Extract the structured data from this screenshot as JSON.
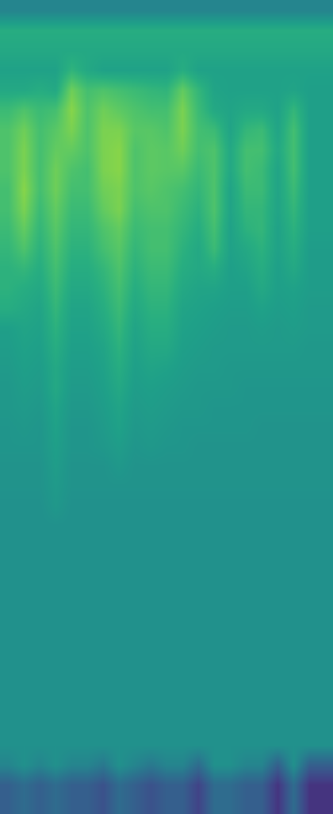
{
  "chart_data": {
    "type": "heatmap",
    "tick_labels": false,
    "zlim": [
      0,
      1
    ],
    "cells": [
      [
        0.45,
        0.45,
        0.45,
        0.45,
        0.45,
        0.45,
        0.45,
        0.45,
        0.45,
        0.45,
        0.45,
        0.45,
        0.45,
        0.45,
        0.45,
        0.45,
        0.45,
        0.45,
        0.45,
        0.45,
        0.45
      ],
      [
        0.62,
        0.62,
        0.62,
        0.62,
        0.62,
        0.62,
        0.62,
        0.62,
        0.62,
        0.62,
        0.62,
        0.62,
        0.62,
        0.62,
        0.62,
        0.62,
        0.62,
        0.62,
        0.62,
        0.62,
        0.62
      ],
      [
        0.6,
        0.6,
        0.6,
        0.6,
        0.6,
        0.6,
        0.6,
        0.6,
        0.6,
        0.6,
        0.6,
        0.6,
        0.6,
        0.6,
        0.6,
        0.6,
        0.6,
        0.6,
        0.6,
        0.6,
        0.6
      ],
      [
        0.57,
        0.57,
        0.57,
        0.57,
        0.65,
        0.6,
        0.57,
        0.57,
        0.57,
        0.57,
        0.57,
        0.62,
        0.57,
        0.57,
        0.57,
        0.57,
        0.57,
        0.57,
        0.57,
        0.57,
        0.57
      ],
      [
        0.6,
        0.6,
        0.62,
        0.6,
        0.78,
        0.7,
        0.72,
        0.7,
        0.68,
        0.66,
        0.65,
        0.76,
        0.66,
        0.58,
        0.57,
        0.57,
        0.57,
        0.57,
        0.58,
        0.56,
        0.56
      ],
      [
        0.68,
        0.72,
        0.68,
        0.7,
        0.82,
        0.72,
        0.78,
        0.75,
        0.72,
        0.7,
        0.7,
        0.8,
        0.68,
        0.6,
        0.58,
        0.6,
        0.6,
        0.57,
        0.66,
        0.56,
        0.56
      ],
      [
        0.72,
        0.78,
        0.7,
        0.74,
        0.8,
        0.72,
        0.8,
        0.8,
        0.74,
        0.74,
        0.72,
        0.8,
        0.7,
        0.68,
        0.58,
        0.66,
        0.68,
        0.58,
        0.7,
        0.56,
        0.56
      ],
      [
        0.72,
        0.8,
        0.7,
        0.76,
        0.76,
        0.72,
        0.8,
        0.82,
        0.72,
        0.75,
        0.74,
        0.78,
        0.7,
        0.72,
        0.6,
        0.7,
        0.7,
        0.6,
        0.7,
        0.56,
        0.56
      ],
      [
        0.72,
        0.8,
        0.7,
        0.78,
        0.72,
        0.7,
        0.8,
        0.82,
        0.72,
        0.75,
        0.74,
        0.74,
        0.68,
        0.72,
        0.6,
        0.7,
        0.68,
        0.58,
        0.7,
        0.56,
        0.56
      ],
      [
        0.7,
        0.82,
        0.7,
        0.78,
        0.7,
        0.7,
        0.78,
        0.8,
        0.72,
        0.74,
        0.72,
        0.7,
        0.66,
        0.72,
        0.58,
        0.68,
        0.68,
        0.58,
        0.68,
        0.56,
        0.56
      ],
      [
        0.7,
        0.8,
        0.68,
        0.76,
        0.68,
        0.68,
        0.76,
        0.8,
        0.7,
        0.72,
        0.72,
        0.68,
        0.64,
        0.72,
        0.58,
        0.66,
        0.66,
        0.58,
        0.66,
        0.56,
        0.56
      ],
      [
        0.68,
        0.76,
        0.66,
        0.74,
        0.66,
        0.66,
        0.72,
        0.76,
        0.68,
        0.7,
        0.7,
        0.66,
        0.62,
        0.7,
        0.57,
        0.64,
        0.66,
        0.57,
        0.64,
        0.56,
        0.56
      ],
      [
        0.66,
        0.72,
        0.64,
        0.72,
        0.64,
        0.64,
        0.7,
        0.74,
        0.66,
        0.7,
        0.7,
        0.64,
        0.6,
        0.68,
        0.57,
        0.6,
        0.64,
        0.57,
        0.62,
        0.55,
        0.55
      ],
      [
        0.64,
        0.66,
        0.62,
        0.7,
        0.62,
        0.62,
        0.66,
        0.72,
        0.64,
        0.68,
        0.68,
        0.62,
        0.6,
        0.62,
        0.56,
        0.58,
        0.62,
        0.56,
        0.6,
        0.55,
        0.55
      ],
      [
        0.64,
        0.62,
        0.6,
        0.68,
        0.6,
        0.6,
        0.64,
        0.7,
        0.62,
        0.66,
        0.66,
        0.6,
        0.58,
        0.58,
        0.56,
        0.56,
        0.6,
        0.56,
        0.57,
        0.55,
        0.55
      ],
      [
        0.62,
        0.6,
        0.58,
        0.66,
        0.58,
        0.58,
        0.62,
        0.68,
        0.6,
        0.64,
        0.64,
        0.58,
        0.57,
        0.56,
        0.55,
        0.55,
        0.57,
        0.55,
        0.56,
        0.54,
        0.54
      ],
      [
        0.56,
        0.58,
        0.57,
        0.64,
        0.57,
        0.57,
        0.6,
        0.66,
        0.58,
        0.62,
        0.62,
        0.57,
        0.56,
        0.55,
        0.54,
        0.54,
        0.55,
        0.54,
        0.55,
        0.54,
        0.54
      ],
      [
        0.55,
        0.57,
        0.56,
        0.62,
        0.56,
        0.56,
        0.58,
        0.64,
        0.57,
        0.6,
        0.6,
        0.56,
        0.55,
        0.54,
        0.54,
        0.54,
        0.54,
        0.54,
        0.54,
        0.53,
        0.53
      ],
      [
        0.54,
        0.56,
        0.55,
        0.6,
        0.55,
        0.55,
        0.57,
        0.62,
        0.56,
        0.58,
        0.57,
        0.55,
        0.54,
        0.54,
        0.53,
        0.53,
        0.53,
        0.53,
        0.53,
        0.53,
        0.53
      ],
      [
        0.53,
        0.55,
        0.54,
        0.6,
        0.54,
        0.54,
        0.56,
        0.6,
        0.55,
        0.56,
        0.55,
        0.54,
        0.53,
        0.53,
        0.53,
        0.52,
        0.52,
        0.52,
        0.52,
        0.52,
        0.52
      ],
      [
        0.53,
        0.54,
        0.53,
        0.58,
        0.53,
        0.53,
        0.55,
        0.58,
        0.54,
        0.55,
        0.54,
        0.53,
        0.53,
        0.52,
        0.52,
        0.52,
        0.52,
        0.52,
        0.52,
        0.52,
        0.52
      ],
      [
        0.52,
        0.53,
        0.52,
        0.57,
        0.52,
        0.52,
        0.54,
        0.57,
        0.53,
        0.54,
        0.53,
        0.52,
        0.52,
        0.52,
        0.52,
        0.52,
        0.51,
        0.51,
        0.51,
        0.51,
        0.51
      ],
      [
        0.52,
        0.52,
        0.52,
        0.56,
        0.52,
        0.52,
        0.53,
        0.55,
        0.52,
        0.53,
        0.52,
        0.52,
        0.51,
        0.51,
        0.51,
        0.51,
        0.51,
        0.51,
        0.51,
        0.51,
        0.51
      ],
      [
        0.51,
        0.51,
        0.51,
        0.55,
        0.51,
        0.51,
        0.51,
        0.53,
        0.51,
        0.51,
        0.51,
        0.51,
        0.51,
        0.51,
        0.51,
        0.51,
        0.51,
        0.51,
        0.51,
        0.51,
        0.51
      ],
      [
        0.51,
        0.51,
        0.51,
        0.54,
        0.51,
        0.51,
        0.51,
        0.51,
        0.51,
        0.51,
        0.51,
        0.51,
        0.51,
        0.51,
        0.51,
        0.51,
        0.51,
        0.51,
        0.51,
        0.51,
        0.51
      ],
      [
        0.5,
        0.5,
        0.5,
        0.53,
        0.5,
        0.5,
        0.5,
        0.5,
        0.5,
        0.5,
        0.5,
        0.5,
        0.5,
        0.5,
        0.5,
        0.5,
        0.5,
        0.5,
        0.5,
        0.5,
        0.5
      ],
      [
        0.5,
        0.5,
        0.5,
        0.5,
        0.5,
        0.5,
        0.5,
        0.5,
        0.5,
        0.5,
        0.5,
        0.5,
        0.5,
        0.5,
        0.5,
        0.5,
        0.5,
        0.5,
        0.5,
        0.5,
        0.5
      ],
      [
        0.5,
        0.5,
        0.5,
        0.5,
        0.5,
        0.5,
        0.5,
        0.5,
        0.5,
        0.5,
        0.5,
        0.5,
        0.5,
        0.5,
        0.5,
        0.5,
        0.5,
        0.5,
        0.5,
        0.5,
        0.5
      ],
      [
        0.5,
        0.5,
        0.5,
        0.5,
        0.5,
        0.5,
        0.5,
        0.5,
        0.5,
        0.5,
        0.5,
        0.5,
        0.5,
        0.5,
        0.5,
        0.5,
        0.5,
        0.5,
        0.5,
        0.5,
        0.5
      ],
      [
        0.5,
        0.5,
        0.5,
        0.5,
        0.5,
        0.5,
        0.5,
        0.5,
        0.5,
        0.5,
        0.5,
        0.5,
        0.5,
        0.5,
        0.5,
        0.5,
        0.5,
        0.5,
        0.5,
        0.5,
        0.5
      ],
      [
        0.5,
        0.5,
        0.5,
        0.5,
        0.5,
        0.5,
        0.5,
        0.5,
        0.5,
        0.5,
        0.5,
        0.5,
        0.5,
        0.5,
        0.5,
        0.5,
        0.5,
        0.5,
        0.5,
        0.5,
        0.5
      ],
      [
        0.5,
        0.5,
        0.5,
        0.5,
        0.5,
        0.5,
        0.5,
        0.5,
        0.5,
        0.5,
        0.5,
        0.5,
        0.5,
        0.5,
        0.5,
        0.5,
        0.5,
        0.5,
        0.5,
        0.5,
        0.5
      ],
      [
        0.5,
        0.5,
        0.5,
        0.5,
        0.5,
        0.5,
        0.5,
        0.5,
        0.5,
        0.5,
        0.5,
        0.5,
        0.5,
        0.5,
        0.5,
        0.5,
        0.5,
        0.5,
        0.5,
        0.5,
        0.5
      ],
      [
        0.5,
        0.5,
        0.5,
        0.5,
        0.5,
        0.5,
        0.5,
        0.5,
        0.5,
        0.5,
        0.5,
        0.5,
        0.5,
        0.5,
        0.5,
        0.5,
        0.5,
        0.5,
        0.5,
        0.5,
        0.5
      ],
      [
        0.5,
        0.5,
        0.5,
        0.5,
        0.5,
        0.5,
        0.5,
        0.5,
        0.5,
        0.5,
        0.5,
        0.5,
        0.5,
        0.5,
        0.5,
        0.5,
        0.5,
        0.5,
        0.5,
        0.5,
        0.5
      ],
      [
        0.5,
        0.5,
        0.5,
        0.5,
        0.5,
        0.5,
        0.5,
        0.5,
        0.5,
        0.5,
        0.5,
        0.5,
        0.5,
        0.5,
        0.5,
        0.5,
        0.5,
        0.5,
        0.5,
        0.5,
        0.5
      ],
      [
        0.5,
        0.5,
        0.5,
        0.5,
        0.5,
        0.5,
        0.5,
        0.5,
        0.5,
        0.5,
        0.5,
        0.5,
        0.5,
        0.5,
        0.5,
        0.5,
        0.5,
        0.5,
        0.5,
        0.5,
        0.5
      ],
      [
        0.5,
        0.5,
        0.5,
        0.5,
        0.5,
        0.5,
        0.5,
        0.5,
        0.5,
        0.5,
        0.5,
        0.5,
        0.5,
        0.5,
        0.5,
        0.5,
        0.5,
        0.5,
        0.5,
        0.5,
        0.5
      ],
      [
        0.45,
        0.5,
        0.45,
        0.5,
        0.45,
        0.45,
        0.4,
        0.5,
        0.45,
        0.4,
        0.45,
        0.45,
        0.35,
        0.5,
        0.5,
        0.45,
        0.45,
        0.3,
        0.5,
        0.3,
        0.3
      ],
      [
        0.3,
        0.35,
        0.3,
        0.35,
        0.3,
        0.3,
        0.25,
        0.35,
        0.3,
        0.25,
        0.3,
        0.3,
        0.2,
        0.35,
        0.35,
        0.3,
        0.3,
        0.15,
        0.35,
        0.15,
        0.15
      ],
      [
        0.3,
        0.35,
        0.3,
        0.35,
        0.3,
        0.3,
        0.25,
        0.35,
        0.3,
        0.25,
        0.3,
        0.3,
        0.2,
        0.35,
        0.35,
        0.3,
        0.3,
        0.15,
        0.35,
        0.15,
        0.15
      ]
    ]
  }
}
